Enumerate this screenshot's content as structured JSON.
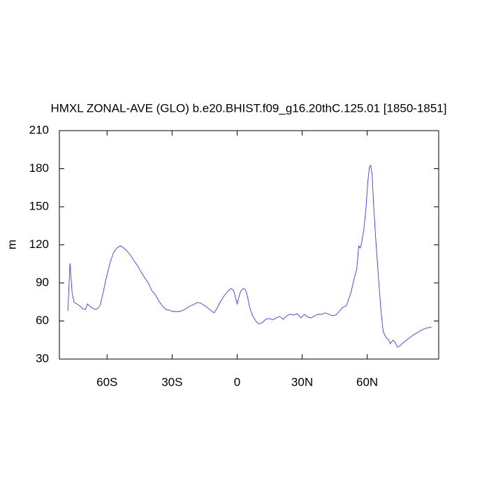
{
  "chart_data": {
    "type": "line",
    "title": "HMXL ZONAL-AVE (GLO) b.e20.BHIST.f09_g16.20thC.125.01 [1850-1851]",
    "y_label": "m",
    "xlim": [
      -82,
      93
    ],
    "ylim": [
      30,
      210
    ],
    "yticks": [
      30,
      60,
      90,
      120,
      150,
      180,
      210
    ],
    "xticks": [
      {
        "value": -60,
        "label": "60S"
      },
      {
        "value": -30,
        "label": "30S"
      },
      {
        "value": 0,
        "label": "0"
      },
      {
        "value": 30,
        "label": "30N"
      },
      {
        "value": 60,
        "label": "60N"
      }
    ],
    "x": [
      -78.1,
      -77.1,
      -76.1,
      -75.2,
      -73.9,
      -72.6,
      -71.3,
      -70,
      -69,
      -68.1,
      -66.8,
      -65.2,
      -64.2,
      -63.2,
      -61.9,
      -60.3,
      -58.7,
      -57.1,
      -55.5,
      -53.9,
      -52.3,
      -50.6,
      -49,
      -47.4,
      -45.8,
      -44.2,
      -42.6,
      -41,
      -39.4,
      -37.7,
      -36.1,
      -34.5,
      -32.9,
      -31.3,
      -29.7,
      -28.1,
      -26.5,
      -24.8,
      -23.2,
      -21.6,
      -20,
      -18.4,
      -16.8,
      -15.2,
      -13.5,
      -11.9,
      -10.6,
      -9.4,
      -7.7,
      -6.1,
      -4.5,
      -2.9,
      -1.6,
      -0.6,
      0,
      0.6,
      1.6,
      2.9,
      3.9,
      4.8,
      5.8,
      7.1,
      8.7,
      10,
      11.6,
      13.2,
      14.8,
      16.5,
      18.1,
      19.7,
      21.3,
      22.9,
      24.5,
      26.1,
      27.7,
      29.4,
      31,
      32.6,
      34.2,
      35.8,
      37.4,
      39,
      40.6,
      42.3,
      43.9,
      45.5,
      47.1,
      48.7,
      50.3,
      51.3,
      52.6,
      53.9,
      55.2,
      56.1,
      56.8,
      57.4,
      58.4,
      59.4,
      60.3,
      61,
      61.6,
      62.3,
      62.9,
      63.9,
      64.8,
      65.5,
      66.5,
      67.4,
      68.7,
      70,
      70.6,
      71.9,
      72.9,
      73.9,
      75.2,
      76.1,
      77.7,
      79.7,
      81.6,
      84.2,
      86.8,
      89.7
    ],
    "series": [
      {
        "color": "#3b3bff",
        "values": [
          68,
          105.4,
          81.8,
          74.6,
          73.5,
          71.9,
          69.7,
          69.1,
          73.5,
          71.9,
          70.2,
          69.1,
          70.2,
          72.4,
          81.8,
          94.4,
          105.4,
          113.7,
          117.5,
          119.2,
          117.5,
          114.7,
          111.4,
          107,
          103.2,
          98.3,
          93.9,
          90,
          84,
          80.7,
          75.7,
          71.9,
          69.1,
          68.6,
          67.5,
          67.5,
          67.5,
          68.6,
          70.2,
          71.9,
          73,
          74.6,
          74.1,
          72.4,
          70.2,
          68,
          66.4,
          69.7,
          75.2,
          79.6,
          82.9,
          85.6,
          84,
          77.4,
          73.5,
          77.4,
          83.4,
          85.6,
          84.5,
          79,
          70.8,
          64.2,
          59.8,
          57.6,
          58.7,
          61.4,
          62,
          60.9,
          62.5,
          63.6,
          61.4,
          64.2,
          65.3,
          64.7,
          65.8,
          62.5,
          65.3,
          63.1,
          62.5,
          64.2,
          65.3,
          65.3,
          66.4,
          65.3,
          64.2,
          64.7,
          67.5,
          70.8,
          71.9,
          76.3,
          82.9,
          92.8,
          101,
          119.2,
          117.5,
          121.4,
          131.3,
          147.8,
          169.8,
          180.8,
          182.5,
          175.3,
          153.3,
          125.8,
          103.8,
          87.3,
          65.3,
          51.5,
          47.1,
          44.9,
          42.2,
          44.9,
          43.2,
          39.4,
          40.5,
          42.2,
          44.3,
          47.1,
          49.3,
          52,
          54.2,
          55.3
        ]
      }
    ]
  }
}
